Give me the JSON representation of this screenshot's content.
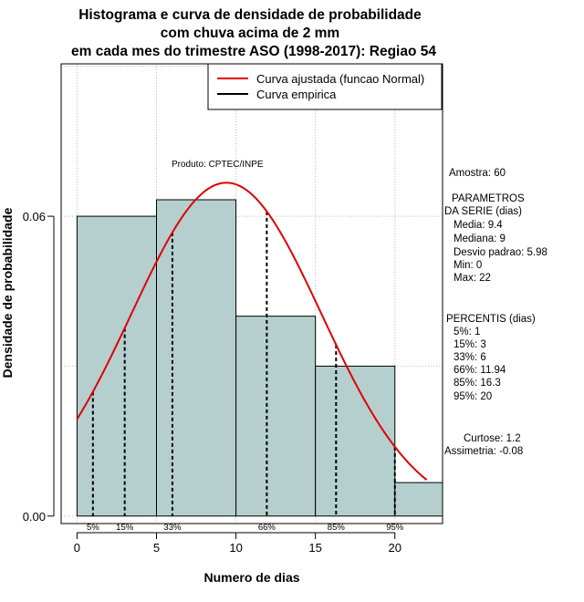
{
  "chart_data": {
    "type": "bar",
    "title_lines": [
      "Histograma e curva de densidade de probabilidade",
      "com chuva acima de 2 mm",
      "em cada mes do trimestre ASO (1998-2017): Regiao 54"
    ],
    "xlabel": "Numero de dias",
    "ylabel": "Densidade de probabilidade",
    "xlim": [
      -1,
      23
    ],
    "ylim": [
      -0.0015,
      0.0905
    ],
    "x_ticks": [
      0,
      5,
      10,
      15,
      20
    ],
    "y_ticks": [
      0.0,
      0.06
    ],
    "y_tick_labels": [
      "0.00",
      "0.06"
    ],
    "grid": true,
    "bins": [
      {
        "x0": 0,
        "x1": 5,
        "density": 0.06
      },
      {
        "x0": 5,
        "x1": 10,
        "density": 0.0633
      },
      {
        "x0": 10,
        "x1": 15,
        "density": 0.04
      },
      {
        "x0": 15,
        "x1": 20,
        "density": 0.03
      },
      {
        "x0": 20,
        "x1": 23,
        "density": 0.0067
      }
    ],
    "normal_curve": {
      "mean": 9.4,
      "sd": 5.98,
      "x_from": 0,
      "x_to": 22
    },
    "percentile_lines": [
      {
        "label": "5%",
        "x": 1
      },
      {
        "label": "15%",
        "x": 3
      },
      {
        "label": "33%",
        "x": 6
      },
      {
        "label": "66%",
        "x": 11.94
      },
      {
        "label": "85%",
        "x": 16.3
      },
      {
        "label": "95%",
        "x": 20
      }
    ],
    "legend": {
      "position": "top-right",
      "entries": [
        {
          "label": "Curva ajustada (funcao Normal)",
          "color": "#e00000"
        },
        {
          "label": "Curva empirica",
          "color": "#000000"
        }
      ]
    },
    "annotation": "Produto: CPTEC/INPE",
    "side_panel": {
      "amostra": "Amostra: 60",
      "param_title_1": "PARAMETROS",
      "param_title_2": "DA SERIE (dias)",
      "params": [
        "Media: 9.4",
        "Mediana: 9",
        "Desvio padrao: 5.98",
        "Min: 0",
        "Max: 22"
      ],
      "pct_title": "PERCENTIS (dias)",
      "percentis": [
        "5%: 1",
        "15%: 3",
        "33%: 6",
        "66%: 11.94",
        "85%: 16.3",
        "95%: 20"
      ],
      "curtose": "Curtose: 1.2",
      "assimetria": "Assimetria: -0.08"
    },
    "colors": {
      "bar_fill": "#b5cfcf",
      "bar_stroke": "#000000",
      "curve": "#e00000",
      "grid": "#bbbbbb"
    }
  }
}
